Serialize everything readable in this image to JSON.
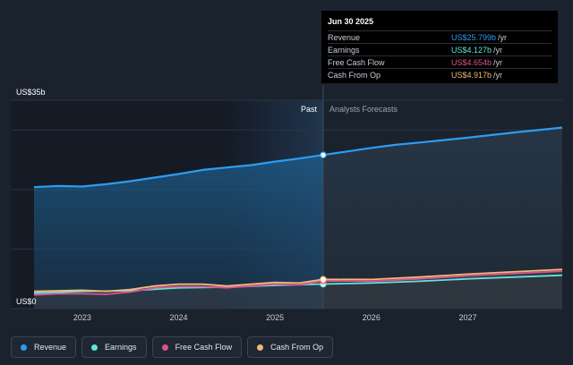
{
  "chart_data": {
    "type": "area",
    "y_top_label": "US$35b",
    "y_bottom_label": "US$0",
    "ylim": [
      0,
      35
    ],
    "xlim": [
      2022.5,
      2027.98
    ],
    "x_ticks": [
      {
        "value": 2023,
        "label": "2023"
      },
      {
        "value": 2024,
        "label": "2024"
      },
      {
        "value": 2025,
        "label": "2025"
      },
      {
        "value": 2026,
        "label": "2026"
      },
      {
        "value": 2027,
        "label": "2027"
      }
    ],
    "gridlines": [
      0,
      10,
      20,
      30,
      35
    ],
    "divider_x": 2025.5,
    "highlight_start_x": 2024.5,
    "past_label": "Past",
    "forecast_label": "Analysts Forecasts",
    "series": [
      {
        "name": "Revenue",
        "color": "#2e9cf0",
        "fill": true,
        "points": [
          [
            2022.5,
            20.4
          ],
          [
            2022.75,
            20.6
          ],
          [
            2023.0,
            20.5
          ],
          [
            2023.25,
            20.9
          ],
          [
            2023.5,
            21.4
          ],
          [
            2023.75,
            22.0
          ],
          [
            2024.0,
            22.6
          ],
          [
            2024.25,
            23.3
          ],
          [
            2024.5,
            23.7
          ],
          [
            2024.75,
            24.1
          ],
          [
            2025.0,
            24.7
          ],
          [
            2025.25,
            25.2
          ],
          [
            2025.5,
            25.8
          ],
          [
            2025.75,
            26.4
          ],
          [
            2026.0,
            27.0
          ],
          [
            2026.25,
            27.5
          ],
          [
            2026.5,
            27.9
          ],
          [
            2026.75,
            28.3
          ],
          [
            2027.0,
            28.7
          ],
          [
            2027.5,
            29.6
          ],
          [
            2027.98,
            30.4
          ]
        ]
      },
      {
        "name": "Earnings",
        "color": "#5ee6d8",
        "fill": false,
        "points": [
          [
            2022.5,
            2.6
          ],
          [
            2023.0,
            2.9
          ],
          [
            2023.5,
            3.0
          ],
          [
            2024.0,
            3.5
          ],
          [
            2024.5,
            3.6
          ],
          [
            2025.0,
            3.9
          ],
          [
            2025.5,
            4.127
          ],
          [
            2026.0,
            4.3
          ],
          [
            2026.5,
            4.6
          ],
          [
            2027.0,
            5.0
          ],
          [
            2027.98,
            5.6
          ]
        ]
      },
      {
        "name": "Free Cash Flow",
        "color": "#e0508f",
        "fill": false,
        "points": [
          [
            2022.5,
            2.3
          ],
          [
            2022.75,
            2.5
          ],
          [
            2023.0,
            2.5
          ],
          [
            2023.25,
            2.4
          ],
          [
            2023.5,
            2.8
          ],
          [
            2023.75,
            3.5
          ],
          [
            2024.0,
            3.7
          ],
          [
            2024.25,
            3.7
          ],
          [
            2024.5,
            3.5
          ],
          [
            2024.75,
            3.8
          ],
          [
            2025.0,
            4.1
          ],
          [
            2025.25,
            4.0
          ],
          [
            2025.5,
            4.654
          ],
          [
            2026.0,
            4.6
          ],
          [
            2026.5,
            5.0
          ],
          [
            2027.0,
            5.5
          ],
          [
            2027.98,
            6.3
          ]
        ]
      },
      {
        "name": "Cash From Op",
        "color": "#f1b87a",
        "fill": false,
        "points": [
          [
            2022.5,
            2.9
          ],
          [
            2022.75,
            3.0
          ],
          [
            2023.0,
            3.1
          ],
          [
            2023.25,
            2.9
          ],
          [
            2023.5,
            3.2
          ],
          [
            2023.75,
            3.8
          ],
          [
            2024.0,
            4.1
          ],
          [
            2024.25,
            4.1
          ],
          [
            2024.5,
            3.8
          ],
          [
            2024.75,
            4.1
          ],
          [
            2025.0,
            4.4
          ],
          [
            2025.25,
            4.3
          ],
          [
            2025.5,
            4.917
          ],
          [
            2026.0,
            4.9
          ],
          [
            2026.5,
            5.3
          ],
          [
            2027.0,
            5.8
          ],
          [
            2027.98,
            6.6
          ]
        ]
      }
    ]
  },
  "tooltip": {
    "date": "Jun 30 2025",
    "rows": [
      {
        "label": "Revenue",
        "value": "US$25.799b",
        "unit": "/yr",
        "color": "#2e9cf0"
      },
      {
        "label": "Earnings",
        "value": "US$4.127b",
        "unit": "/yr",
        "color": "#5ee6d8"
      },
      {
        "label": "Free Cash Flow",
        "value": "US$4.654b",
        "unit": "/yr",
        "color": "#e0508f"
      },
      {
        "label": "Cash From Op",
        "value": "US$4.917b",
        "unit": "/yr",
        "color": "#f1b87a"
      }
    ]
  },
  "legend": [
    {
      "label": "Revenue",
      "color": "#2e9cf0"
    },
    {
      "label": "Earnings",
      "color": "#5ee6d8"
    },
    {
      "label": "Free Cash Flow",
      "color": "#e0508f"
    },
    {
      "label": "Cash From Op",
      "color": "#f1b87a"
    }
  ]
}
